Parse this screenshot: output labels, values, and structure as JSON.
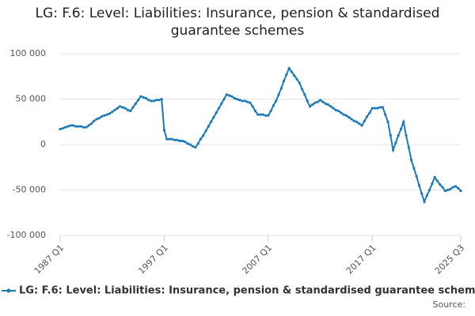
{
  "chart_data": {
    "type": "line",
    "title": "LG: F.6: Level: Liabilities: Insurance, pension & standardised guarantee schemes",
    "source": "Source:",
    "categories": [
      "1987 Q1",
      null,
      null,
      null,
      null,
      null,
      null,
      null,
      null,
      null,
      null,
      null,
      null,
      null,
      null,
      null,
      null,
      null,
      null,
      null,
      null,
      null,
      null,
      null,
      null,
      null,
      null,
      null,
      null,
      null,
      null,
      null,
      null,
      null,
      null,
      null,
      null,
      null,
      null,
      null,
      "1997 Q1",
      null,
      null,
      null,
      null,
      null,
      null,
      null,
      null,
      null,
      null,
      null,
      null,
      null,
      null,
      null,
      null,
      null,
      null,
      null,
      null,
      null,
      null,
      null,
      null,
      null,
      null,
      null,
      null,
      null,
      null,
      null,
      null,
      null,
      null,
      null,
      null,
      null,
      null,
      null,
      "2007 Q1",
      null,
      null,
      null,
      null,
      null,
      null,
      null,
      null,
      null,
      null,
      null,
      null,
      null,
      null,
      null,
      null,
      null,
      null,
      null,
      null,
      null,
      null,
      null,
      null,
      null,
      null,
      null,
      null,
      null,
      null,
      null,
      null,
      null,
      null,
      null,
      null,
      null,
      null,
      null,
      "2017 Q1",
      null,
      null,
      null,
      null,
      null,
      null,
      null,
      null,
      null,
      null,
      null,
      null,
      null,
      null,
      null,
      null,
      null,
      null,
      null,
      null,
      null,
      null,
      null,
      null,
      null,
      null,
      null,
      null,
      null,
      null,
      null,
      null,
      null,
      "2025 Q3"
    ],
    "series": [
      {
        "name": "LG: F.6: Level: Liabilities: Insurance, pension & standardised guarantee schemes",
        "color": "#1a7ab8",
        "values": [
          17000,
          18000,
          19000,
          20000,
          21000,
          21000,
          20000,
          20000,
          20000,
          19000,
          19000,
          21000,
          23000,
          26000,
          28000,
          29000,
          31000,
          32000,
          33000,
          34000,
          36000,
          38000,
          40000,
          42000,
          41000,
          40000,
          38000,
          37000,
          41000,
          45000,
          49000,
          53000,
          52000,
          51000,
          49000,
          48000,
          48000,
          49000,
          49000,
          50000,
          16000,
          6000,
          6000,
          6000,
          5000,
          5000,
          4000,
          4000,
          3000,
          1000,
          0,
          -2000,
          -3000,
          1000,
          6000,
          10000,
          15000,
          20000,
          25000,
          30000,
          35000,
          40000,
          45000,
          50000,
          55000,
          54000,
          53000,
          51000,
          50000,
          49000,
          48000,
          48000,
          47000,
          46000,
          42000,
          37000,
          33000,
          33000,
          33000,
          32000,
          32000,
          37000,
          43000,
          48000,
          55000,
          62000,
          70000,
          77000,
          84000,
          80000,
          76000,
          72000,
          68000,
          61000,
          55000,
          48000,
          42000,
          44000,
          46000,
          47000,
          49000,
          47000,
          45000,
          44000,
          42000,
          40000,
          38000,
          37000,
          35000,
          33000,
          32000,
          30000,
          28000,
          26000,
          25000,
          23000,
          21000,
          26000,
          31000,
          35000,
          40000,
          40000,
          40000,
          41000,
          41000,
          33000,
          25000,
          10000,
          -6000,
          2000,
          10000,
          17000,
          25000,
          10000,
          -3000,
          -17000,
          -26000,
          -35000,
          -45000,
          -54000,
          -63000,
          -56000,
          -50000,
          -43000,
          -36000,
          -40000,
          -44000,
          -47000,
          -51000,
          -50000,
          -49000,
          -47000,
          -46000,
          -48000,
          -51000
        ]
      }
    ],
    "ylim": [
      -100000,
      100000
    ],
    "yticks": [
      {
        "value": -100000,
        "label": "-100 000"
      },
      {
        "value": -50000,
        "label": "-50 000"
      },
      0,
      {
        "value": 50000,
        "label": "50 000"
      },
      {
        "value": 100000,
        "label": "100 000"
      }
    ],
    "grid": true
  }
}
